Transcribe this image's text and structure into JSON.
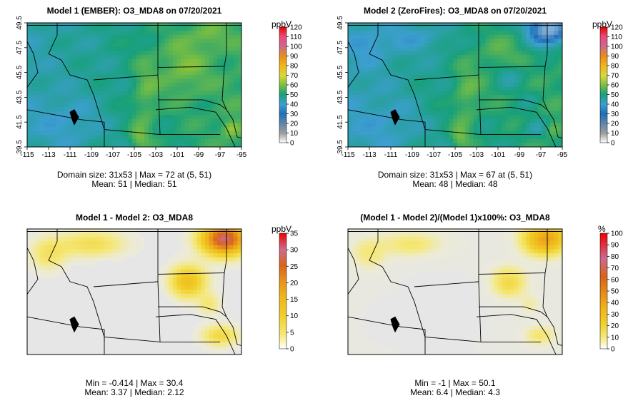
{
  "panels": [
    {
      "title": "Model 1 (EMBER): O3_MDA8 on 07/20/2021",
      "stats_line1": "Domain size: 31x53 | Max = 72 at (5, 51)",
      "stats_line2": "Mean: 51 |  Median: 51",
      "unit": "ppbV",
      "colorbar_ticks": [
        "120",
        "110",
        "100",
        "90",
        "80",
        "70",
        "60",
        "50",
        "40",
        "30",
        "20",
        "10",
        "0"
      ],
      "x_ticks": [
        "-115",
        "-113",
        "-111",
        "-109",
        "-107",
        "-105",
        "-103",
        "-101",
        "-99",
        "-97",
        "-95"
      ],
      "y_ticks": [
        "49.5",
        "47.5",
        "45.5",
        "43.5",
        "41.5",
        "39.5"
      ]
    },
    {
      "title": "Model 2 (ZeroFires): O3_MDA8 on 07/20/2021",
      "stats_line1": "Domain size: 31x53 | Max = 67 at (5, 51)",
      "stats_line2": "Mean: 48 |  Median: 48",
      "unit": "ppbV",
      "colorbar_ticks": [
        "120",
        "110",
        "100",
        "90",
        "80",
        "70",
        "60",
        "50",
        "40",
        "30",
        "20",
        "10",
        "0"
      ],
      "x_ticks": [
        "-115",
        "-113",
        "-111",
        "-109",
        "-107",
        "-105",
        "-103",
        "-101",
        "-99",
        "-97",
        "-95"
      ],
      "y_ticks": [
        "49.5",
        "47.5",
        "45.5",
        "43.5",
        "41.5",
        "39.5"
      ]
    },
    {
      "title": "Model 1 - Model 2: O3_MDA8",
      "stats_line1": "Min = -0.414 | Max = 30.4",
      "stats_line2": "Mean: 3.37 |  Median: 2.12",
      "unit": "ppbV",
      "colorbar_ticks": [
        "35",
        "30",
        "25",
        "20",
        "15",
        "10",
        "5",
        "0"
      ]
    },
    {
      "title": "(Model 1 - Model 2)/(Model 1)x100%: O3_MDA8",
      "stats_line1": "Min = -1 | Max = 50.1",
      "stats_line2": "Mean: 6.4 |  Median: 4.3",
      "unit": "%",
      "colorbar_ticks": [
        "100",
        "90",
        "80",
        "70",
        "60",
        "50",
        "40",
        "30",
        "20",
        "10",
        "0"
      ]
    }
  ],
  "colors": {
    "abs_scale": [
      "#e6e6e6",
      "#9e9e9e",
      "#1f6fb6",
      "#3d9fd0",
      "#18a07a",
      "#7fbf3f",
      "#d8d83a",
      "#f0b41a",
      "#e58e1a",
      "#d9641a",
      "#cc6a8e",
      "#e84a78",
      "#ee0000"
    ],
    "diff_scale": [
      "#e6e6e6",
      "#f5e87a",
      "#f0d02a",
      "#f0b41a",
      "#e58e1a",
      "#d9641a",
      "#cc6a8e",
      "#ee0000"
    ]
  }
}
